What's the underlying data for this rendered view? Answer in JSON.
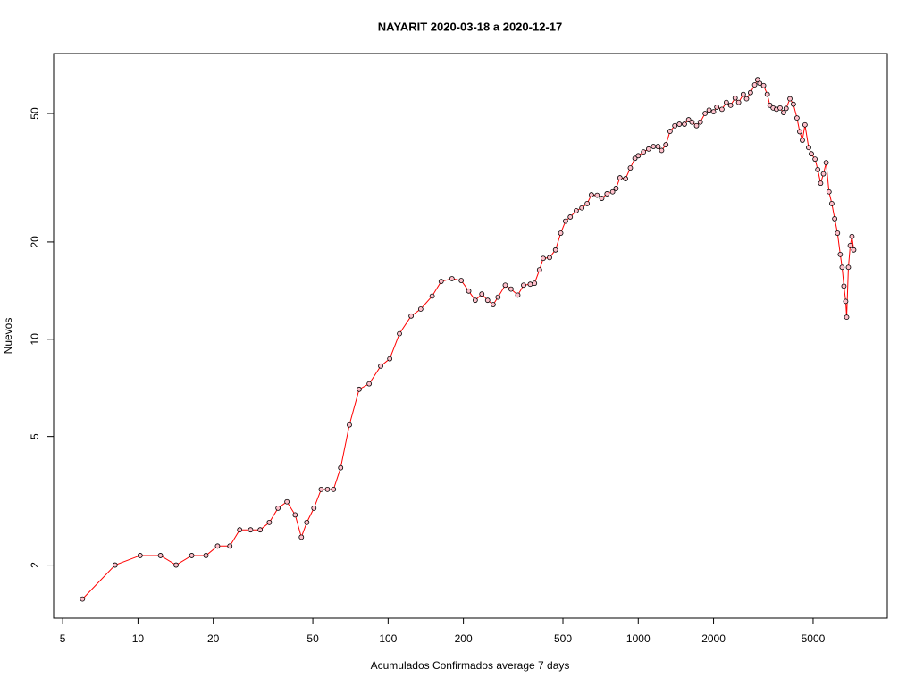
{
  "chart_data": {
    "type": "line",
    "title": "NAYARIT 2020-03-18 a 2020-12-17",
    "x_label": "Acumulados Confirmados average  7  days",
    "y_label": "Nuevos",
    "log_x": true,
    "log_y": true,
    "xlim": [
      4.6,
      9900
    ],
    "ylim": [
      1.37,
      76.6
    ],
    "xticks": [
      5,
      10,
      20,
      50,
      100,
      200,
      500,
      1000,
      2000,
      5000
    ],
    "yticks": [
      2,
      5,
      10,
      20,
      50
    ],
    "line_color": "#ff0000",
    "marker_fill": "#ffc0cb",
    "marker_stroke": "#000000",
    "x": [
      6,
      8.1,
      10.2,
      12.3,
      14.2,
      16.4,
      18.7,
      20.8,
      23.3,
      25.5,
      28.2,
      30.8,
      33.5,
      36.3,
      39.4,
      42.5,
      45,
      47.3,
      50.5,
      54,
      57.2,
      60.5,
      64.6,
      70,
      76.6,
      84,
      93.4,
      101.5,
      111,
      123.6,
      135,
      150,
      163,
      180,
      196,
      210,
      223,
      237,
      250,
      263,
      275,
      294,
      310,
      330,
      348,
      370,
      385,
      403,
      417,
      442,
      467,
      490,
      512,
      535,
      565,
      595,
      625,
      650,
      685,
      715,
      750,
      790,
      815,
      845,
      890,
      930,
      970,
      1000,
      1050,
      1100,
      1150,
      1200,
      1240,
      1290,
      1340,
      1400,
      1460,
      1530,
      1590,
      1640,
      1710,
      1770,
      1850,
      1920,
      2000,
      2060,
      2160,
      2250,
      2340,
      2440,
      2520,
      2630,
      2710,
      2810,
      2920,
      3000,
      3060,
      3170,
      3280,
      3360,
      3460,
      3570,
      3690,
      3810,
      3900,
      4040,
      4170,
      4310,
      4420,
      4530,
      4640,
      4800,
      4920,
      5090,
      5220,
      5360,
      5500,
      5640,
      5790,
      5940,
      6100,
      6260,
      6420,
      6530,
      6640,
      6750,
      6810,
      6920,
      7040,
      7150,
      7270
    ],
    "values": [
      1.57,
      2,
      2.14,
      2.14,
      2,
      2.14,
      2.14,
      2.29,
      2.29,
      2.57,
      2.57,
      2.57,
      2.71,
      3,
      3.14,
      2.86,
      2.44,
      2.71,
      3,
      3.43,
      3.43,
      3.43,
      4,
      5.43,
      7,
      7.28,
      8.26,
      8.7,
      10.4,
      11.8,
      12.4,
      13.6,
      15.1,
      15.4,
      15.2,
      14.1,
      13.2,
      13.8,
      13.2,
      12.8,
      13.5,
      14.7,
      14.3,
      13.7,
      14.7,
      14.8,
      14.9,
      16.4,
      17.8,
      17.9,
      18.9,
      21.3,
      23.2,
      23.9,
      25,
      25.5,
      26.3,
      28,
      27.9,
      27.3,
      28.2,
      28.6,
      29.3,
      31.6,
      31.4,
      33.9,
      36.3,
      37,
      38,
      38.8,
      39.5,
      39.5,
      38.4,
      40,
      44,
      45.8,
      46.3,
      46.3,
      47.8,
      47,
      45.8,
      47,
      50,
      51.2,
      50.6,
      52.3,
      51.5,
      54.1,
      53,
      55.8,
      54.1,
      57.3,
      55.5,
      58,
      61.3,
      63.6,
      62,
      61,
      57.3,
      53,
      52,
      51.5,
      52,
      50.3,
      51.8,
      55.5,
      53.4,
      48.4,
      43.9,
      41.3,
      46.1,
      39.2,
      37.5,
      36.1,
      33.5,
      30.4,
      32.5,
      35.2,
      28.6,
      26.3,
      23.6,
      21.3,
      18.3,
      16.7,
      14.6,
      13.1,
      11.7,
      16.7,
      19.5,
      20.8,
      18.9
    ]
  }
}
